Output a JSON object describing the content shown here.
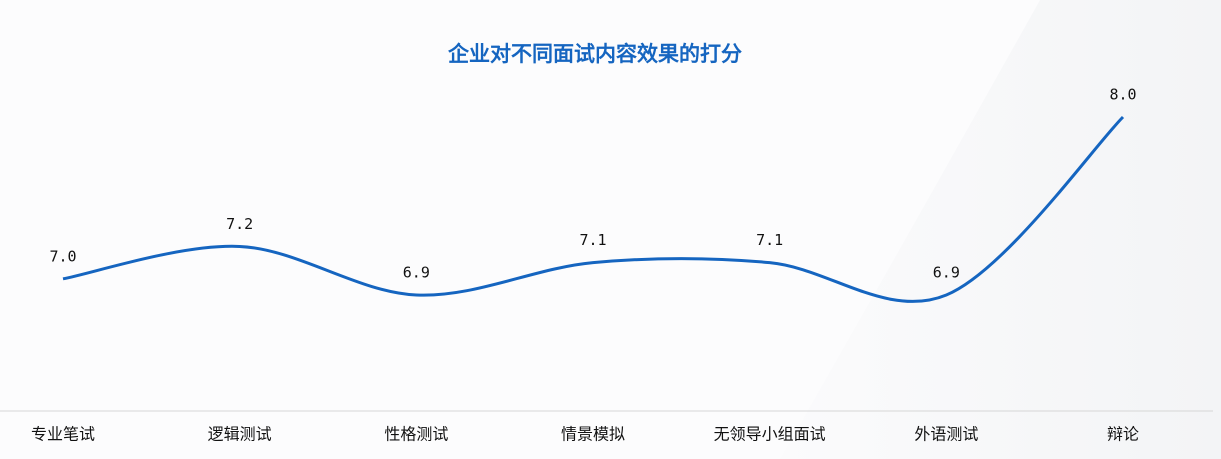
{
  "chart_data": {
    "type": "line",
    "title": "企业对不同面试内容效果的打分",
    "categories": [
      "专业笔试",
      "逻辑测试",
      "性格测试",
      "情景模拟",
      "无领导小组面试",
      "外语测试",
      "辩论"
    ],
    "series": [
      {
        "values": [
          7.0,
          7.2,
          6.9,
          7.1,
          7.1,
          6.9,
          8.0
        ],
        "value_labels": [
          "7.0",
          "7.2",
          "6.9",
          "7.1",
          "7.1",
          "6.9",
          "8.0"
        ],
        "color": "#1565c0"
      }
    ],
    "smooth": true
  }
}
